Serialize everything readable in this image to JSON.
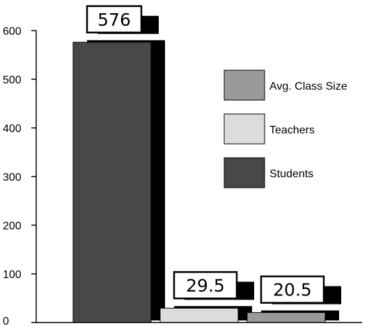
{
  "chart_data": {
    "type": "bar",
    "title": "",
    "xlabel": "",
    "ylabel": "",
    "ylim": [
      0,
      600
    ],
    "yticks": [
      0,
      100,
      200,
      300,
      400,
      500,
      600
    ],
    "grid": false,
    "legend_position": "right",
    "series": [
      {
        "name": "Students",
        "value": 576,
        "value_label": "576",
        "color": "#484848"
      },
      {
        "name": "Teachers",
        "value": 29.5,
        "value_label": "29.5",
        "color": "#dcdcdc"
      },
      {
        "name": "Avg. Class Size",
        "value": 20.5,
        "value_label": "20.5",
        "color": "#9a9a9a"
      }
    ],
    "legend_order": [
      "Avg. Class Size",
      "Teachers",
      "Students"
    ],
    "shadow_color": "#000000"
  }
}
